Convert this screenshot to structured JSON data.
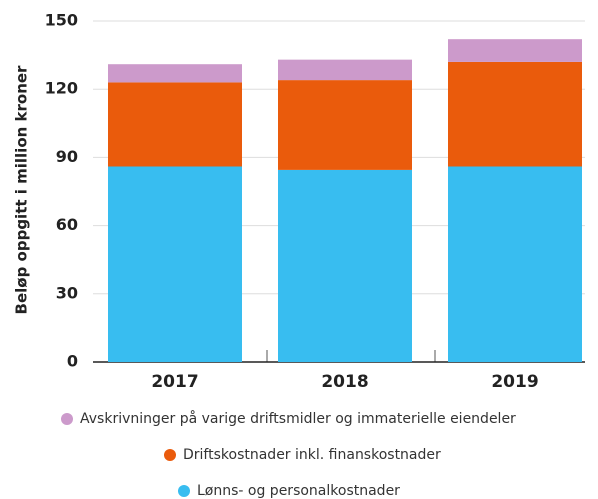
{
  "chart_data": {
    "type": "stacked_bar",
    "y_label": "Beløp oppgitt i million kroner",
    "categories": [
      "2017",
      "2018",
      "2019"
    ],
    "series": [
      {
        "name": "Lønns- og personalkostnader",
        "color": "#38bdf0",
        "values": [
          86,
          84.5,
          86
        ]
      },
      {
        "name": "Driftskostnader inkl. finanskostnader",
        "color": "#ea5b0c",
        "values": [
          37,
          39.5,
          46
        ]
      },
      {
        "name": "Avskrivninger på varige driftsmidler og immaterielle eiendeler",
        "color": "#cc9acb",
        "values": [
          8,
          9,
          10
        ]
      }
    ],
    "ylim": [
      0,
      150
    ],
    "yticks": [
      0,
      30,
      60,
      90,
      120,
      150
    ],
    "grid": true
  }
}
